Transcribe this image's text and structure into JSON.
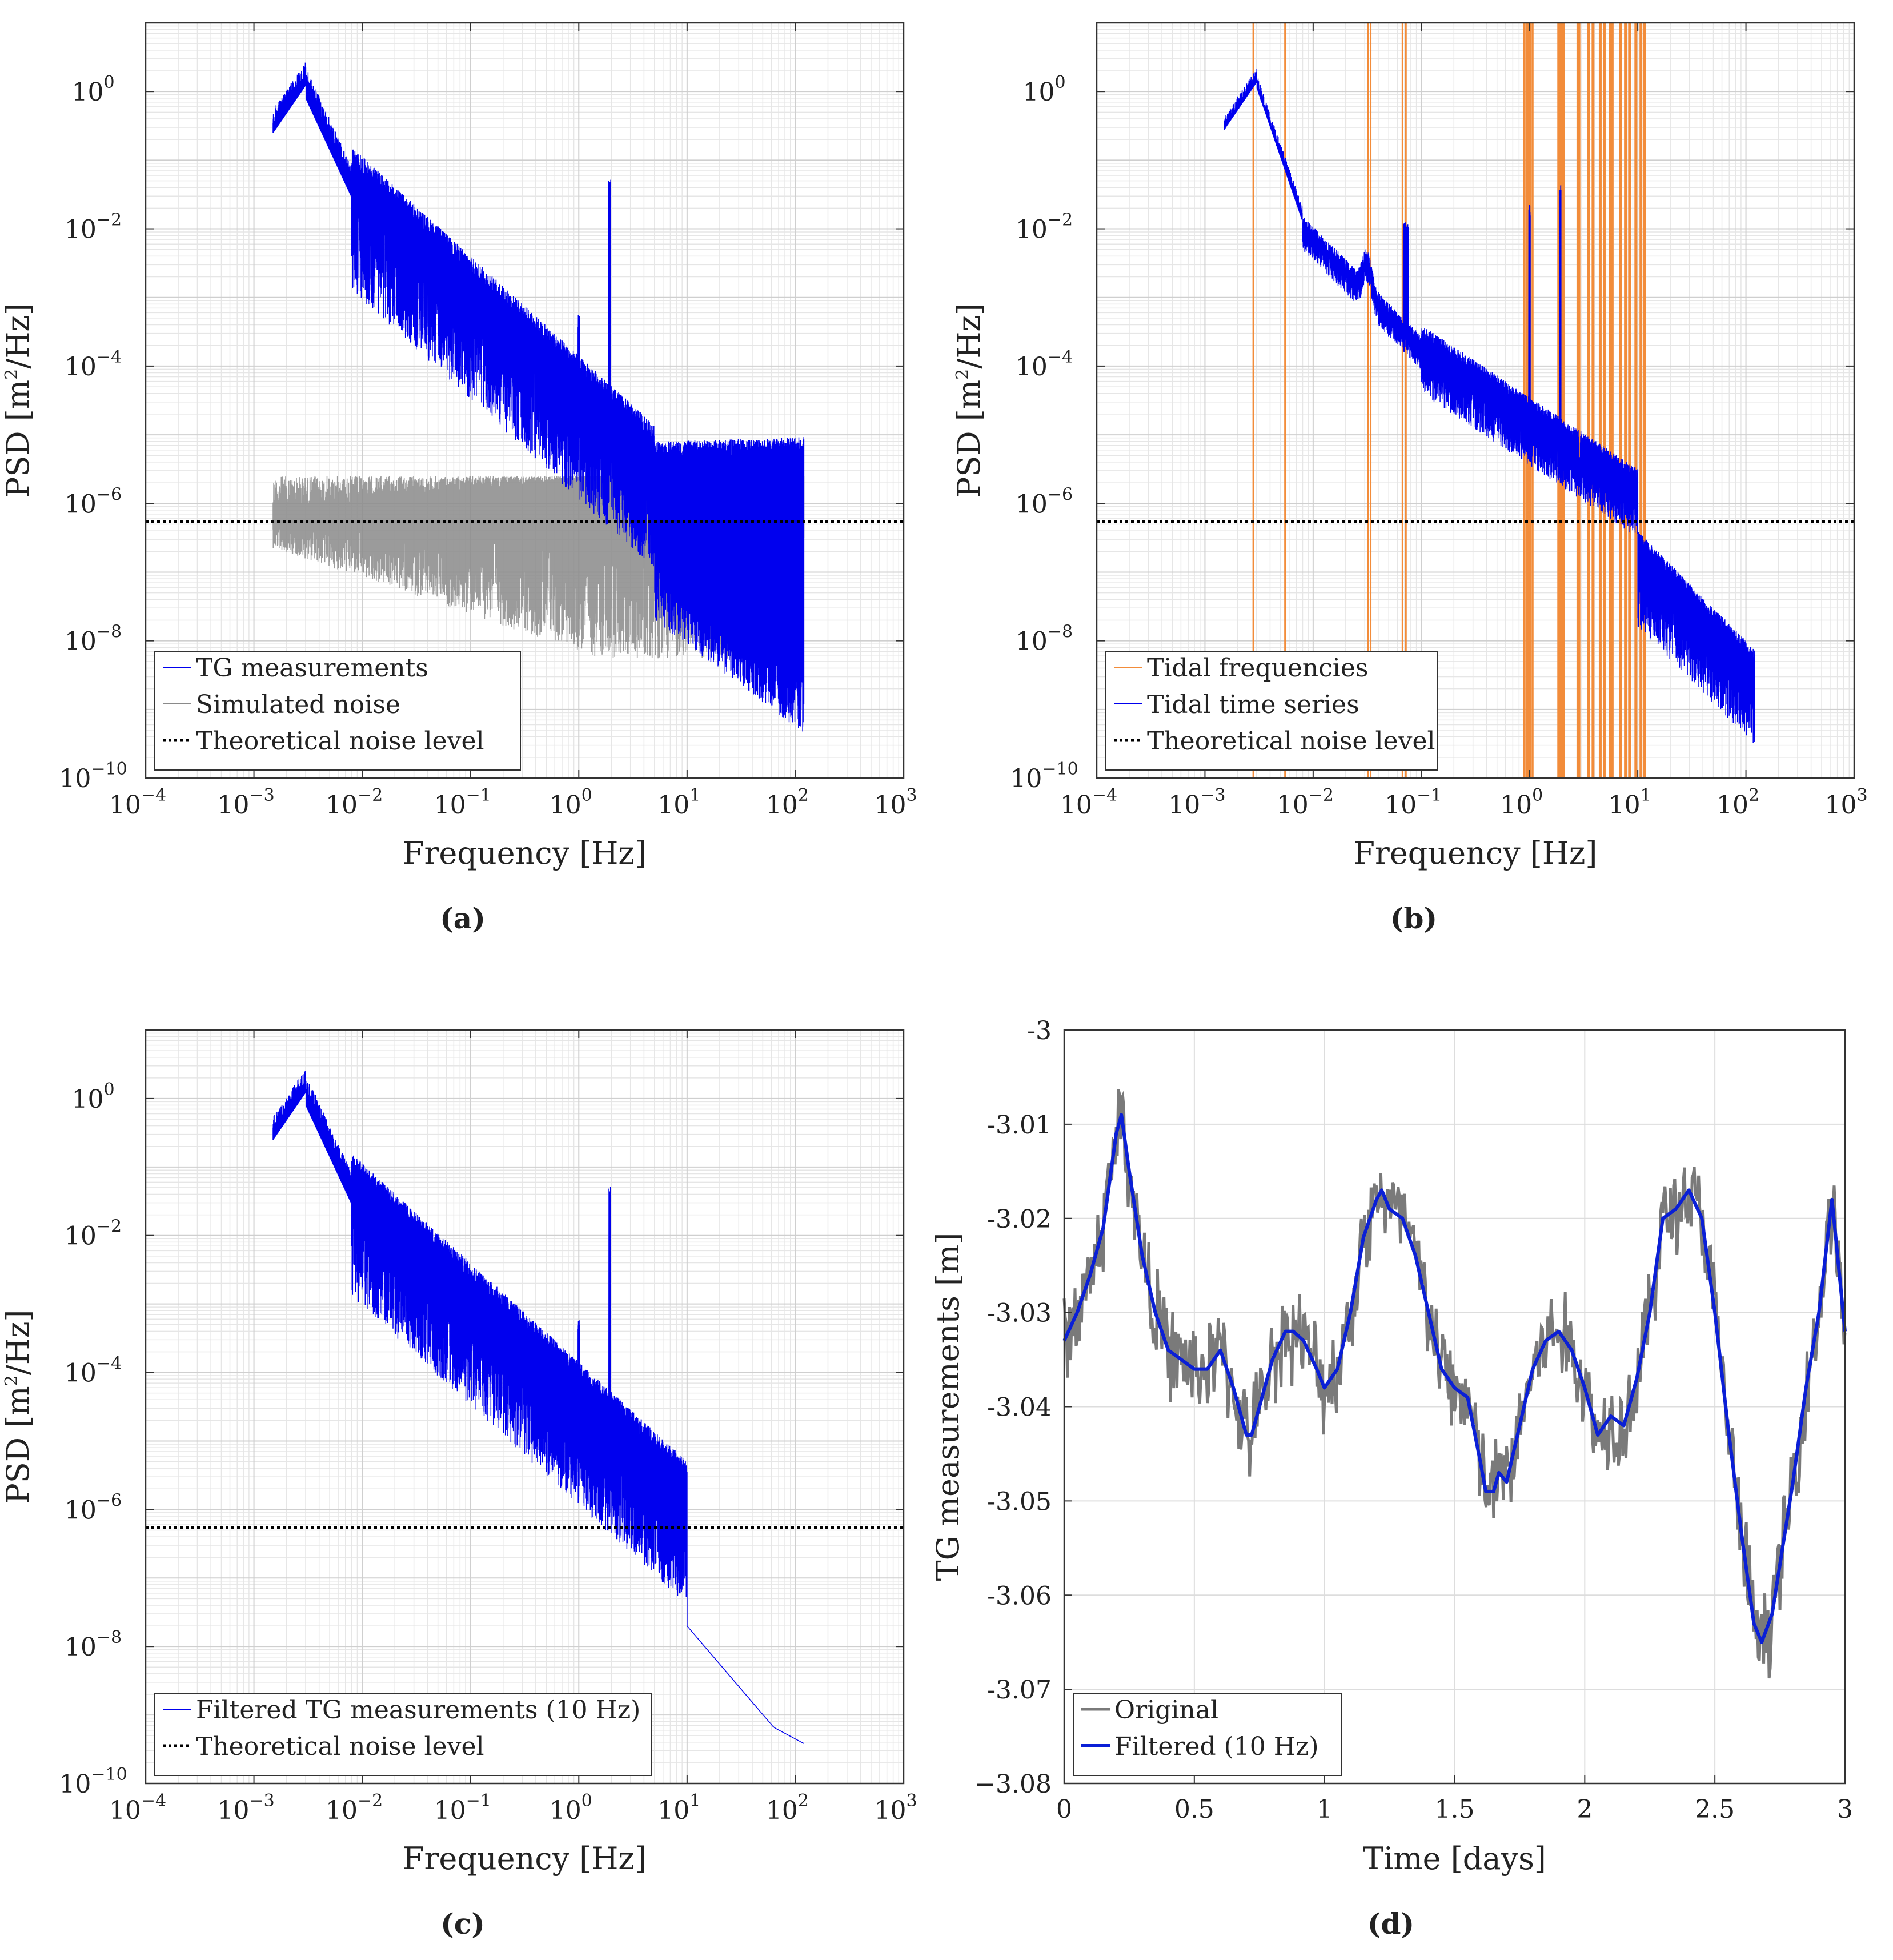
{
  "colors": {
    "tg": "#0000ee",
    "noise": "#8a8a8a",
    "tidal_freq": "#f28c3a",
    "theoretical": "#000000",
    "original": "#7a7a7a",
    "filtered": "#0a1fd6"
  },
  "chart_data": [
    {
      "panel": "a",
      "caption": "(a)",
      "type": "line",
      "xscale": "log",
      "yscale": "log",
      "xlabel": "Frequency [Hz]",
      "ylabel": "PSD [m²/Hz]",
      "xlim": [
        0.0001,
        1000
      ],
      "ylim": [
        1e-10,
        10
      ],
      "x_ticks": [
        {
          "label": "10",
          "exp": "−4"
        },
        {
          "label": "10",
          "exp": "−3"
        },
        {
          "label": "10",
          "exp": "−2"
        },
        {
          "label": "10",
          "exp": "−1"
        },
        {
          "label": "10",
          "exp": "0"
        },
        {
          "label": "10",
          "exp": "1"
        },
        {
          "label": "10",
          "exp": "2"
        },
        {
          "label": "10",
          "exp": "3"
        }
      ],
      "y_ticks": [
        {
          "label": "10",
          "exp": "−10"
        },
        {
          "label": "10",
          "exp": "−8"
        },
        {
          "label": "10",
          "exp": "−6"
        },
        {
          "label": "10",
          "exp": "−4"
        },
        {
          "label": "10",
          "exp": "−2"
        },
        {
          "label": "10",
          "exp": "0"
        }
      ],
      "series": [
        {
          "name": "TG measurements",
          "kind": "tg_psd",
          "x_range": [
            0.0015,
            120
          ]
        },
        {
          "name": "Simulated noise",
          "kind": "noise_psd",
          "x_range": [
            0.0015,
            120
          ]
        },
        {
          "name": "Theoretical noise level",
          "kind": "hline",
          "value": 5.5e-07
        }
      ],
      "legend": [
        "TG measurements",
        "Simulated noise",
        "Theoretical noise level"
      ],
      "legend_position": "bottom-left"
    },
    {
      "panel": "b",
      "caption": "(b)",
      "type": "line",
      "xscale": "log",
      "yscale": "log",
      "xlabel": "Frequency [Hz]",
      "ylabel": "PSD [m²/Hz]",
      "xlim": [
        0.0001,
        1000
      ],
      "ylim": [
        1e-10,
        10
      ],
      "x_ticks": [
        {
          "label": "10",
          "exp": "−4"
        },
        {
          "label": "10",
          "exp": "−3"
        },
        {
          "label": "10",
          "exp": "−2"
        },
        {
          "label": "10",
          "exp": "−1"
        },
        {
          "label": "10",
          "exp": "0"
        },
        {
          "label": "10",
          "exp": "1"
        },
        {
          "label": "10",
          "exp": "2"
        },
        {
          "label": "10",
          "exp": "3"
        }
      ],
      "y_ticks": [
        {
          "label": "10",
          "exp": "−10"
        },
        {
          "label": "10",
          "exp": "−8"
        },
        {
          "label": "10",
          "exp": "−6"
        },
        {
          "label": "10",
          "exp": "−4"
        },
        {
          "label": "10",
          "exp": "−2"
        },
        {
          "label": "10",
          "exp": "0"
        }
      ],
      "tidal_frequencies": [
        0.0028,
        0.0055,
        0.032,
        0.034,
        0.067,
        0.072,
        0.89,
        0.93,
        0.97,
        1.0,
        1.03,
        1.07,
        1.86,
        1.9,
        1.93,
        1.97,
        2.0,
        2.05,
        2.8,
        2.86,
        3.5,
        3.86,
        4.5,
        4.9,
        5.6,
        5.8,
        6.9,
        7.7,
        8.4,
        9.6,
        10.7,
        11.6
      ],
      "series": [
        {
          "name": "Tidal frequencies",
          "kind": "vlines"
        },
        {
          "name": "Tidal time series",
          "kind": "tidal_psd",
          "x_range": [
            0.0015,
            120
          ]
        },
        {
          "name": "Theoretical noise level",
          "kind": "hline",
          "value": 5.5e-07
        }
      ],
      "legend": [
        "Tidal frequencies",
        "Tidal time series",
        "Theoretical noise level"
      ],
      "legend_position": "bottom-left"
    },
    {
      "panel": "c",
      "caption": "(c)",
      "type": "line",
      "xscale": "log",
      "yscale": "log",
      "xlabel": "Frequency [Hz]",
      "ylabel": "PSD [m²/Hz]",
      "xlim": [
        0.0001,
        1000
      ],
      "ylim": [
        1e-10,
        10
      ],
      "x_ticks": [
        {
          "label": "10",
          "exp": "−4"
        },
        {
          "label": "10",
          "exp": "−3"
        },
        {
          "label": "10",
          "exp": "−2"
        },
        {
          "label": "10",
          "exp": "−1"
        },
        {
          "label": "10",
          "exp": "0"
        },
        {
          "label": "10",
          "exp": "1"
        },
        {
          "label": "10",
          "exp": "2"
        },
        {
          "label": "10",
          "exp": "3"
        }
      ],
      "y_ticks": [
        {
          "label": "10",
          "exp": "−10"
        },
        {
          "label": "10",
          "exp": "−8"
        },
        {
          "label": "10",
          "exp": "−6"
        },
        {
          "label": "10",
          "exp": "−4"
        },
        {
          "label": "10",
          "exp": "−2"
        },
        {
          "label": "10",
          "exp": "0"
        }
      ],
      "series": [
        {
          "name": "Filtered TG measurements (10 Hz)",
          "kind": "filtered_psd",
          "x_range": [
            0.0015,
            120
          ],
          "cutoff": 10
        },
        {
          "name": "Theoretical noise level",
          "kind": "hline",
          "value": 5.5e-07
        }
      ],
      "legend": [
        "Filtered TG measurements (10 Hz)",
        "Theoretical noise level"
      ],
      "legend_position": "bottom-left"
    },
    {
      "panel": "d",
      "caption": "(d)",
      "type": "line",
      "xscale": "linear",
      "yscale": "linear",
      "xlabel": "Time [days]",
      "ylabel": "TG measurements [m]",
      "xlim": [
        0,
        3
      ],
      "ylim": [
        -3.08,
        -3.0
      ],
      "x_tick_values": [
        0,
        0.5,
        1,
        1.5,
        2,
        2.5,
        3
      ],
      "x_tick_labels": [
        "0",
        "0.5",
        "1",
        "1.5",
        "2",
        "2.5",
        "3"
      ],
      "y_tick_values": [
        -3.08,
        -3.07,
        -3.06,
        -3.05,
        -3.04,
        -3.03,
        -3.02,
        -3.01,
        -3.0
      ],
      "y_tick_labels": [
        "−3.08",
        "-3.07",
        "-3.06",
        "-3.05",
        "-3.04",
        "-3.03",
        "-3.02",
        "-3.01",
        "-3"
      ],
      "filtered_x": [
        0,
        0.05,
        0.1,
        0.15,
        0.2,
        0.22,
        0.25,
        0.3,
        0.35,
        0.4,
        0.45,
        0.5,
        0.55,
        0.6,
        0.65,
        0.7,
        0.72,
        0.75,
        0.8,
        0.85,
        0.88,
        0.92,
        0.97,
        1.0,
        1.05,
        1.1,
        1.15,
        1.2,
        1.22,
        1.25,
        1.3,
        1.35,
        1.4,
        1.45,
        1.5,
        1.55,
        1.6,
        1.62,
        1.65,
        1.67,
        1.7,
        1.75,
        1.8,
        1.85,
        1.9,
        1.95,
        2.0,
        2.05,
        2.1,
        2.15,
        2.2,
        2.25,
        2.3,
        2.35,
        2.4,
        2.45,
        2.5,
        2.55,
        2.6,
        2.65,
        2.68,
        2.72,
        2.8,
        2.85,
        2.9,
        2.95,
        3.0
      ],
      "filtered_y": [
        -3.033,
        -3.03,
        -3.026,
        -3.021,
        -3.011,
        -3.009,
        -3.015,
        -3.024,
        -3.03,
        -3.034,
        -3.035,
        -3.036,
        -3.036,
        -3.034,
        -3.038,
        -3.043,
        -3.043,
        -3.04,
        -3.035,
        -3.032,
        -3.032,
        -3.033,
        -3.036,
        -3.038,
        -3.036,
        -3.03,
        -3.022,
        -3.018,
        -3.017,
        -3.019,
        -3.02,
        -3.024,
        -3.03,
        -3.036,
        -3.038,
        -3.039,
        -3.046,
        -3.049,
        -3.049,
        -3.047,
        -3.048,
        -3.042,
        -3.036,
        -3.033,
        -3.032,
        -3.034,
        -3.038,
        -3.043,
        -3.041,
        -3.042,
        -3.037,
        -3.03,
        -3.02,
        -3.019,
        -3.017,
        -3.02,
        -3.03,
        -3.042,
        -3.053,
        -3.063,
        -3.065,
        -3.062,
        -3.048,
        -3.038,
        -3.03,
        -3.018,
        -3.032
      ],
      "original_noise_amplitude": 0.004,
      "legend": [
        "Original",
        "Filtered (10 Hz)"
      ],
      "legend_position": "bottom-left"
    }
  ]
}
